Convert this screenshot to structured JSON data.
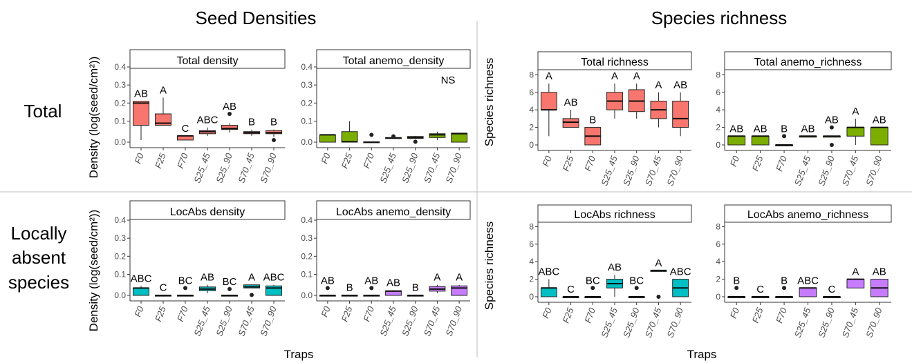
{
  "sections": {
    "left_title": "Seed Densities",
    "right_title": "Species richness",
    "row_total": "Total",
    "row_locabs_1": "Locally",
    "row_locabs_2": "absent",
    "row_locabs_3": "species",
    "density_ylabel": "Density (log(seed/cm²))",
    "richness_ylabel": "Species richness",
    "xlabel": "Traps"
  },
  "colors": {
    "red": "#f8766d",
    "green": "#7cae00",
    "teal": "#00bfc4",
    "purple": "#c77cff"
  },
  "chart_data": [
    {
      "type": "boxplot",
      "title": "Total density",
      "scale": "density",
      "color": "#f8766d",
      "categories": [
        "F0",
        "F25",
        "F70",
        "S25_45",
        "S25_90",
        "S70_45",
        "S70_90"
      ],
      "yticks": [
        "0.0",
        "0.1",
        "0.2",
        "0.3",
        "0.4"
      ],
      "ylim": [
        0,
        0.4
      ],
      "annotation": "",
      "letters": [
        "AB",
        "A",
        "C",
        "ABC",
        "AB",
        "B",
        "B"
      ],
      "boxes": [
        {
          "q1": 0.08,
          "med": 0.2,
          "q3": 0.21,
          "lo": 0.01,
          "hi": 0.21,
          "out": []
        },
        {
          "q1": 0.08,
          "med": 0.09,
          "q3": 0.14,
          "lo": 0.08,
          "hi": 0.23,
          "out": []
        },
        {
          "q1": 0.01,
          "med": 0.03,
          "q3": 0.03,
          "lo": 0.01,
          "hi": 0.03,
          "out": []
        },
        {
          "q1": 0.04,
          "med": 0.05,
          "q3": 0.055,
          "lo": 0.03,
          "hi": 0.07,
          "out": []
        },
        {
          "q1": 0.06,
          "med": 0.065,
          "q3": 0.08,
          "lo": 0.045,
          "hi": 0.09,
          "out": [
            0.14
          ]
        },
        {
          "q1": 0.04,
          "med": 0.045,
          "q3": 0.05,
          "lo": 0.03,
          "hi": 0.06,
          "out": []
        },
        {
          "q1": 0.04,
          "med": 0.045,
          "q3": 0.055,
          "lo": 0.025,
          "hi": 0.06,
          "out": [
            0.01
          ]
        }
      ]
    },
    {
      "type": "boxplot",
      "title": "Total anemo_density",
      "scale": "density",
      "color": "#7cae00",
      "categories": [
        "F0",
        "F25",
        "F70",
        "S25_45",
        "S25_90",
        "S70_45",
        "S70_90"
      ],
      "yticks": [
        "0.0",
        "0.1",
        "0.2",
        "0.3",
        "0.4"
      ],
      "ylim": [
        0,
        0.4
      ],
      "annotation": "NS",
      "letters": [
        "",
        "",
        "",
        "",
        "",
        "",
        ""
      ],
      "boxes": [
        {
          "q1": 0,
          "med": 0.035,
          "q3": 0.035,
          "lo": 0,
          "hi": 0.035,
          "out": []
        },
        {
          "q1": 0,
          "med": 0.002,
          "q3": 0.05,
          "lo": 0,
          "hi": 0.1,
          "out": []
        },
        {
          "q1": 0,
          "med": 0,
          "q3": 0.002,
          "lo": 0,
          "hi": 0.002,
          "out": [
            0.035
          ]
        },
        {
          "q1": 0.019,
          "med": 0.02,
          "q3": 0.022,
          "lo": 0.019,
          "hi": 0.022,
          "out": [
            0.028
          ]
        },
        {
          "q1": 0.018,
          "med": 0.022,
          "q3": 0.027,
          "lo": 0.015,
          "hi": 0.03,
          "out": [
            0.002
          ]
        },
        {
          "q1": 0.022,
          "med": 0.035,
          "q3": 0.04,
          "lo": 0.01,
          "hi": 0.05,
          "out": []
        },
        {
          "q1": 0,
          "med": 0.04,
          "q3": 0.043,
          "lo": 0,
          "hi": 0.045,
          "out": []
        }
      ]
    },
    {
      "type": "boxplot",
      "title": "Total richness",
      "scale": "richness",
      "color": "#f8766d",
      "categories": [
        "F0",
        "F25",
        "F70",
        "S25_45",
        "S25_90",
        "S70_45",
        "S70_90"
      ],
      "yticks": [
        "0",
        "2",
        "4",
        "6",
        "8"
      ],
      "ylim": [
        0,
        8.5
      ],
      "annotation": "",
      "letters": [
        "A",
        "AB",
        "B",
        "A",
        "A",
        "A",
        "AB"
      ],
      "boxes": [
        {
          "q1": 4,
          "med": 4,
          "q3": 6,
          "lo": 1,
          "hi": 7,
          "out": []
        },
        {
          "q1": 2,
          "med": 2.6,
          "q3": 3,
          "lo": 2,
          "hi": 4,
          "out": []
        },
        {
          "q1": 0,
          "med": 1,
          "q3": 2,
          "lo": 0,
          "hi": 2,
          "out": []
        },
        {
          "q1": 4,
          "med": 5,
          "q3": 6,
          "lo": 3,
          "hi": 7,
          "out": []
        },
        {
          "q1": 3.8,
          "med": 5,
          "q3": 6.3,
          "lo": 3,
          "hi": 7,
          "out": []
        },
        {
          "q1": 3,
          "med": 4,
          "q3": 5,
          "lo": 2,
          "hi": 6,
          "out": []
        },
        {
          "q1": 2,
          "med": 3,
          "q3": 5,
          "lo": 1,
          "hi": 6,
          "out": []
        }
      ]
    },
    {
      "type": "boxplot",
      "title": "Total anemo_richness",
      "scale": "richness",
      "color": "#7cae00",
      "categories": [
        "F0",
        "F25",
        "F70",
        "S25_45",
        "S25_90",
        "S70_45",
        "S70_90"
      ],
      "yticks": [
        "0",
        "2",
        "4",
        "6",
        "8"
      ],
      "ylim": [
        0,
        8.5
      ],
      "annotation": "",
      "letters": [
        "AB",
        "AB",
        "B",
        "AB",
        "AB",
        "A",
        "AB"
      ],
      "boxes": [
        {
          "q1": 0,
          "med": 1,
          "q3": 1,
          "lo": 0,
          "hi": 1,
          "out": []
        },
        {
          "q1": 0,
          "med": 1,
          "q3": 1,
          "lo": 0,
          "hi": 1,
          "out": []
        },
        {
          "q1": 0,
          "med": 0,
          "q3": 0,
          "lo": 0,
          "hi": 0,
          "out": [
            1
          ]
        },
        {
          "q1": 1,
          "med": 1,
          "q3": 1,
          "lo": 1,
          "hi": 1,
          "out": []
        },
        {
          "q1": 1,
          "med": 1,
          "q3": 1,
          "lo": 1,
          "hi": 1,
          "out": [
            2,
            0
          ]
        },
        {
          "q1": 1,
          "med": 2,
          "q3": 2,
          "lo": 0,
          "hi": 3,
          "out": []
        },
        {
          "q1": 0,
          "med": 2,
          "q3": 2,
          "lo": 0,
          "hi": 2,
          "out": []
        }
      ]
    },
    {
      "type": "boxplot",
      "title": "LocAbs density",
      "scale": "density",
      "color": "#00bfc4",
      "categories": [
        "F0",
        "F25",
        "F70",
        "S25_45",
        "S25_90",
        "S70_45",
        "S70_90"
      ],
      "yticks": [
        "0.0",
        "0.1",
        "0.2",
        "0.3",
        "0.4"
      ],
      "ylim": [
        0,
        0.4
      ],
      "annotation": "",
      "letters": [
        "ABC",
        "C",
        "BC",
        "AB",
        "BC",
        "A",
        "ABC"
      ],
      "boxes": [
        {
          "q1": 0,
          "med": 0.035,
          "q3": 0.035,
          "lo": 0,
          "hi": 0.045,
          "out": []
        },
        {
          "q1": 0,
          "med": 0,
          "q3": 0.001,
          "lo": 0,
          "hi": 0.001,
          "out": []
        },
        {
          "q1": 0,
          "med": 0,
          "q3": 0.001,
          "lo": 0,
          "hi": 0.001,
          "out": [
            0.035
          ]
        },
        {
          "q1": 0.022,
          "med": 0.03,
          "q3": 0.04,
          "lo": 0.01,
          "hi": 0.05,
          "out": []
        },
        {
          "q1": 0,
          "med": 0,
          "q3": 0.001,
          "lo": 0,
          "hi": 0.001,
          "out": [
            0.03
          ]
        },
        {
          "q1": 0.035,
          "med": 0.04,
          "q3": 0.05,
          "lo": 0.035,
          "hi": 0.05,
          "out": [
            0.002
          ]
        },
        {
          "q1": 0,
          "med": 0.035,
          "q3": 0.045,
          "lo": 0,
          "hi": 0.05,
          "out": []
        }
      ]
    },
    {
      "type": "boxplot",
      "title": "LocAbs anemo_density",
      "scale": "density",
      "color": "#c77cff",
      "categories": [
        "F0",
        "F25",
        "F70",
        "S25_45",
        "S25_90",
        "S70_45",
        "S70_90"
      ],
      "yticks": [
        "0.0",
        "0.1",
        "0.2",
        "0.3",
        "0.4"
      ],
      "ylim": [
        0,
        0.4
      ],
      "annotation": "",
      "letters": [
        "AB",
        "B",
        "AB",
        "AB",
        "B",
        "A",
        "A"
      ],
      "boxes": [
        {
          "q1": 0,
          "med": 0,
          "q3": 0.001,
          "lo": 0,
          "hi": 0.001,
          "out": [
            0.035
          ]
        },
        {
          "q1": 0,
          "med": 0,
          "q3": 0.001,
          "lo": 0,
          "hi": 0.001,
          "out": []
        },
        {
          "q1": 0,
          "med": 0,
          "q3": 0.001,
          "lo": 0,
          "hi": 0.001,
          "out": [
            0.035
          ]
        },
        {
          "q1": 0,
          "med": 0.02,
          "q3": 0.022,
          "lo": 0,
          "hi": 0.025,
          "out": []
        },
        {
          "q1": 0,
          "med": 0,
          "q3": 0.001,
          "lo": 0,
          "hi": 0.001,
          "out": []
        },
        {
          "q1": 0.02,
          "med": 0.03,
          "q3": 0.042,
          "lo": 0.01,
          "hi": 0.05,
          "out": []
        },
        {
          "q1": 0,
          "med": 0.035,
          "q3": 0.045,
          "lo": 0,
          "hi": 0.05,
          "out": []
        }
      ]
    },
    {
      "type": "boxplot",
      "title": "LocAbs richness",
      "scale": "richness",
      "color": "#00bfc4",
      "categories": [
        "F0",
        "F25",
        "F70",
        "S25_45",
        "S25_90",
        "S70_45",
        "S70_90"
      ],
      "yticks": [
        "0",
        "2",
        "4",
        "6",
        "8"
      ],
      "ylim": [
        0,
        8.5
      ],
      "annotation": "",
      "letters": [
        "ABC",
        "C",
        "BC",
        "AB",
        "BC",
        "A",
        "ABC"
      ],
      "boxes": [
        {
          "q1": 0,
          "med": 1,
          "q3": 1,
          "lo": 0,
          "hi": 2,
          "out": []
        },
        {
          "q1": 0,
          "med": 0,
          "q3": 0,
          "lo": 0,
          "hi": 0,
          "out": []
        },
        {
          "q1": 0,
          "med": 0,
          "q3": 0,
          "lo": 0,
          "hi": 0,
          "out": [
            1
          ]
        },
        {
          "q1": 1,
          "med": 1.5,
          "q3": 2,
          "lo": 0,
          "hi": 2.5,
          "out": []
        },
        {
          "q1": 0,
          "med": 0,
          "q3": 0,
          "lo": 0,
          "hi": 0,
          "out": [
            1
          ]
        },
        {
          "q1": 3,
          "med": 3,
          "q3": 3,
          "lo": 3,
          "hi": 3,
          "out": [
            0
          ]
        },
        {
          "q1": 0,
          "med": 1,
          "q3": 2,
          "lo": 0,
          "hi": 2,
          "out": []
        }
      ]
    },
    {
      "type": "boxplot",
      "title": "LocAbs anemo_richness",
      "scale": "richness",
      "color": "#c77cff",
      "categories": [
        "F0",
        "F25",
        "F70",
        "S25_45",
        "S25_90",
        "S70_45",
        "S70_90"
      ],
      "yticks": [
        "0",
        "2",
        "4",
        "6",
        "8"
      ],
      "ylim": [
        0,
        8.5
      ],
      "annotation": "",
      "letters": [
        "B",
        "C",
        "B",
        "ABC",
        "C",
        "A",
        "AB"
      ],
      "boxes": [
        {
          "q1": 0,
          "med": 0,
          "q3": 0,
          "lo": 0,
          "hi": 0,
          "out": [
            1
          ]
        },
        {
          "q1": 0,
          "med": 0,
          "q3": 0,
          "lo": 0,
          "hi": 0,
          "out": []
        },
        {
          "q1": 0,
          "med": 0,
          "q3": 0,
          "lo": 0,
          "hi": 0,
          "out": [
            1
          ]
        },
        {
          "q1": 0,
          "med": 1,
          "q3": 1,
          "lo": 0,
          "hi": 1,
          "out": []
        },
        {
          "q1": 0,
          "med": 0,
          "q3": 0,
          "lo": 0,
          "hi": 0,
          "out": []
        },
        {
          "q1": 1,
          "med": 2,
          "q3": 2,
          "lo": 1,
          "hi": 2,
          "out": []
        },
        {
          "q1": 0,
          "med": 1,
          "q3": 2,
          "lo": 0,
          "hi": 2,
          "out": []
        }
      ]
    }
  ]
}
